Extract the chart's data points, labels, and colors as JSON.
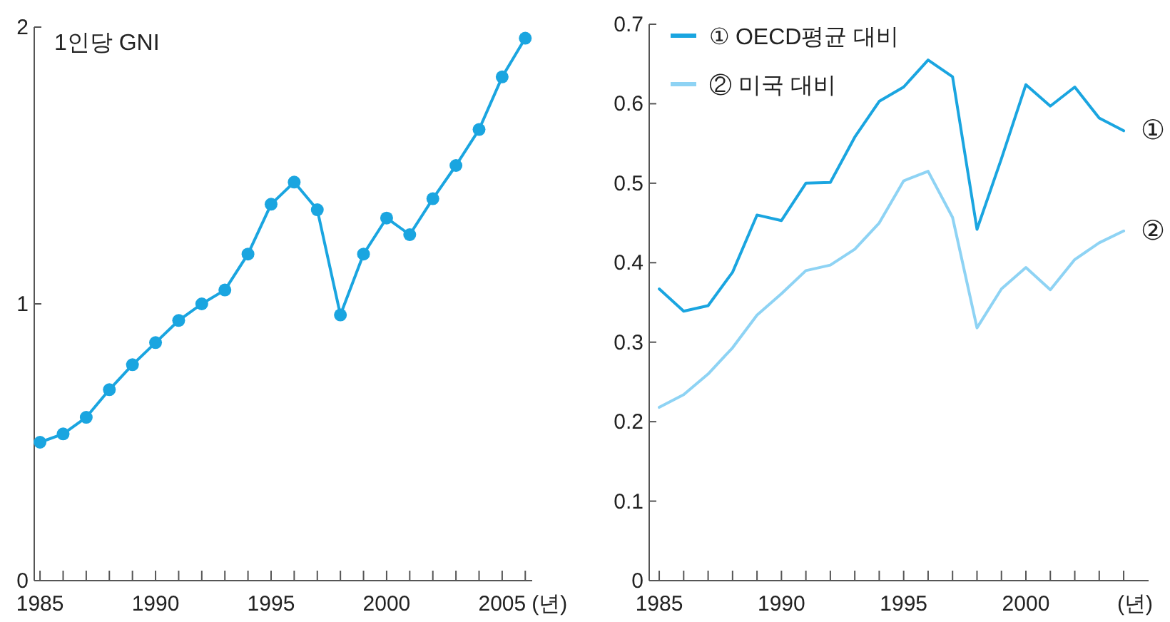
{
  "chart_data": [
    {
      "type": "line",
      "title": "1인당 GNI",
      "xlabel": "(년)",
      "marker": "circle",
      "x": [
        1985,
        1986,
        1987,
        1988,
        1989,
        1990,
        1991,
        1992,
        1993,
        1994,
        1995,
        1996,
        1997,
        1998,
        1999,
        2000,
        2001,
        2002,
        2003,
        2004,
        2005,
        2006
      ],
      "series": [
        {
          "color": "#1aa5e0",
          "values": [
            0.5,
            0.53,
            0.59,
            0.69,
            0.78,
            0.86,
            0.94,
            1.0,
            1.05,
            1.18,
            1.36,
            1.44,
            1.34,
            0.96,
            1.18,
            1.31,
            1.25,
            1.38,
            1.5,
            1.63,
            1.82,
            1.96
          ]
        }
      ],
      "xlim": [
        1984.75,
        2006.3
      ],
      "ylim": [
        0,
        2
      ],
      "yticks": [
        0,
        1,
        2
      ],
      "xticks": [
        1985,
        {
          "value": 1986,
          "label": null
        },
        {
          "value": 1987,
          "label": null
        },
        {
          "value": 1988,
          "label": null
        },
        {
          "value": 1989,
          "label": null
        },
        1990,
        {
          "value": 1991,
          "label": null
        },
        {
          "value": 1992,
          "label": null
        },
        {
          "value": 1993,
          "label": null
        },
        {
          "value": 1994,
          "label": null
        },
        1995,
        {
          "value": 1996,
          "label": null
        },
        {
          "value": 1997,
          "label": null
        },
        {
          "value": 1998,
          "label": null
        },
        {
          "value": 1999,
          "label": null
        },
        2000,
        {
          "value": 2001,
          "label": null
        },
        {
          "value": 2002,
          "label": null
        },
        {
          "value": 2003,
          "label": null
        },
        {
          "value": 2004,
          "label": null
        },
        2005,
        {
          "value": 2006,
          "label": null
        }
      ]
    },
    {
      "type": "line",
      "xlabel": "(년)",
      "legend": "top left",
      "marker": "none",
      "x": [
        1985,
        1986,
        1987,
        1988,
        1989,
        1990,
        1991,
        1992,
        1993,
        1994,
        1995,
        1996,
        1997,
        1998,
        1999,
        2000,
        2001,
        2002,
        2003,
        2004
      ],
      "series": [
        {
          "name": "① OECD평균 대비",
          "color": "#1aa5e0",
          "values": [
            0.367,
            0.339,
            0.346,
            0.388,
            0.46,
            0.453,
            0.5,
            0.501,
            0.558,
            0.603,
            0.621,
            0.655,
            0.634,
            0.442,
            0.531,
            0.624,
            0.597,
            0.621,
            0.582,
            0.566
          ]
        },
        {
          "name": "② 미국 대비",
          "color": "#8ed3f4",
          "values": [
            0.218,
            0.234,
            0.26,
            0.293,
            0.334,
            0.361,
            0.39,
            0.397,
            0.417,
            0.45,
            0.503,
            0.515,
            0.457,
            0.318,
            0.367,
            0.394,
            0.366,
            0.404,
            0.425,
            0.44
          ]
        }
      ],
      "annotations": [
        {
          "text": "①",
          "x": 2004,
          "y": 0.566
        },
        {
          "text": "②",
          "x": 2004,
          "y": 0.44
        }
      ],
      "xlim": [
        1984.59,
        2005.02
      ],
      "ylim": [
        0,
        0.7
      ],
      "yticks": [
        0,
        0.1,
        0.2,
        0.3,
        0.4,
        0.5,
        0.6,
        0.7
      ],
      "xticks": [
        1985,
        {
          "value": 1986,
          "label": null
        },
        {
          "value": 1987,
          "label": null
        },
        {
          "value": 1988,
          "label": null
        },
        {
          "value": 1989,
          "label": null
        },
        1990,
        {
          "value": 1991,
          "label": null
        },
        {
          "value": 1992,
          "label": null
        },
        {
          "value": 1993,
          "label": null
        },
        {
          "value": 1994,
          "label": null
        },
        1995,
        {
          "value": 1996,
          "label": null
        },
        {
          "value": 1997,
          "label": null
        },
        {
          "value": 1998,
          "label": null
        },
        {
          "value": 1999,
          "label": null
        },
        2000,
        {
          "value": 2001,
          "label": null
        },
        {
          "value": 2002,
          "label": null
        },
        {
          "value": 2003,
          "label": null
        },
        {
          "value": 2004,
          "label": null
        }
      ]
    }
  ]
}
